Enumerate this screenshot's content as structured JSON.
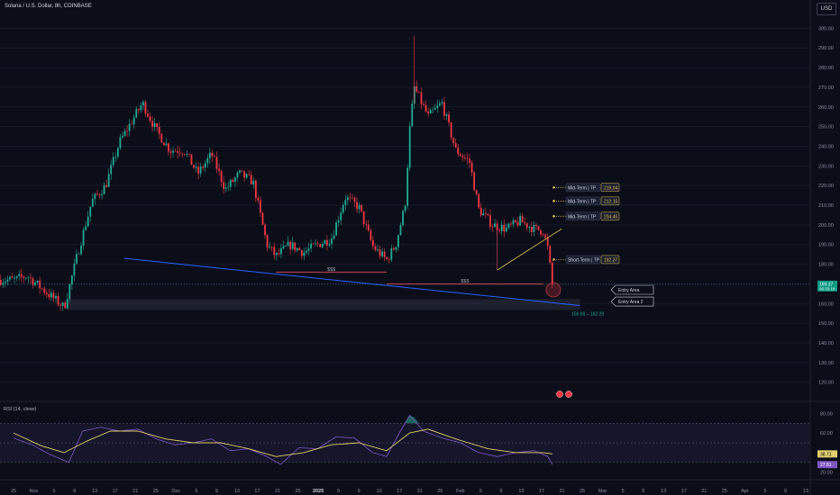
{
  "header": {
    "symbol_title": "Solana / U.S. Dollar, 8h, COINBASE",
    "currency": "USD"
  },
  "colors": {
    "background": "#0b0e19",
    "up": "#22ab94",
    "down": "#f23645",
    "trendline": "#2962ff",
    "wedge": "#e0b84a",
    "rsi": "#7e57c2",
    "rsi_ma": "#e0d070",
    "price_label": "#089981",
    "tp_label": "#e0b84a"
  },
  "chart_data": {
    "type": "candlestick",
    "y_axis": {
      "range": [
        113,
        302
      ],
      "ticks": [
        300,
        290,
        280,
        270,
        260,
        250,
        240,
        230,
        220,
        210,
        200,
        190,
        180,
        170,
        160,
        150,
        140,
        130,
        120
      ]
    },
    "x_axis": {
      "ticks": [
        {
          "label": "25",
          "bold": false
        },
        {
          "label": "Nov",
          "bold": false
        },
        {
          "label": "5",
          "bold": false
        },
        {
          "label": "9",
          "bold": false
        },
        {
          "label": "13",
          "bold": false
        },
        {
          "label": "17",
          "bold": false
        },
        {
          "label": "21",
          "bold": false
        },
        {
          "label": "25",
          "bold": false
        },
        {
          "label": "Dec",
          "bold": false
        },
        {
          "label": "5",
          "bold": false
        },
        {
          "label": "9",
          "bold": false
        },
        {
          "label": "13",
          "bold": false
        },
        {
          "label": "17",
          "bold": false
        },
        {
          "label": "21",
          "bold": false
        },
        {
          "label": "25",
          "bold": false
        },
        {
          "label": "2025",
          "bold": true
        },
        {
          "label": "5",
          "bold": false
        },
        {
          "label": "9",
          "bold": false
        },
        {
          "label": "13",
          "bold": false
        },
        {
          "label": "17",
          "bold": false
        },
        {
          "label": "21",
          "bold": false
        },
        {
          "label": "25",
          "bold": false
        },
        {
          "label": "Feb",
          "bold": false
        },
        {
          "label": "5",
          "bold": false
        },
        {
          "label": "9",
          "bold": false
        },
        {
          "label": "13",
          "bold": false
        },
        {
          "label": "17",
          "bold": false
        },
        {
          "label": "21",
          "bold": false
        },
        {
          "label": "25",
          "bold": false
        },
        {
          "label": "Mar",
          "bold": false
        },
        {
          "label": "5",
          "bold": false
        },
        {
          "label": "9",
          "bold": false
        },
        {
          "label": "13",
          "bold": false
        },
        {
          "label": "17",
          "bold": false
        },
        {
          "label": "21",
          "bold": false
        },
        {
          "label": "25",
          "bold": false
        },
        {
          "label": "Apr",
          "bold": false
        },
        {
          "label": "5",
          "bold": false
        },
        {
          "label": "9",
          "bold": false
        },
        {
          "label": "13",
          "bold": false
        }
      ]
    },
    "price_path": [
      {
        "date": "2024-10-24",
        "price": 172
      },
      {
        "date": "2024-10-27",
        "price": 174
      },
      {
        "date": "2024-10-31",
        "price": 166
      },
      {
        "date": "2024-11-04",
        "price": 158
      },
      {
        "date": "2024-11-07",
        "price": 186
      },
      {
        "date": "2024-11-10",
        "price": 212
      },
      {
        "date": "2024-11-13",
        "price": 220
      },
      {
        "date": "2024-11-16",
        "price": 242
      },
      {
        "date": "2024-11-19",
        "price": 254
      },
      {
        "date": "2024-11-21",
        "price": 262
      },
      {
        "date": "2024-11-24",
        "price": 248
      },
      {
        "date": "2024-11-27",
        "price": 238
      },
      {
        "date": "2024-11-30",
        "price": 238
      },
      {
        "date": "2024-12-03",
        "price": 226
      },
      {
        "date": "2024-12-06",
        "price": 236
      },
      {
        "date": "2024-12-09",
        "price": 218
      },
      {
        "date": "2024-12-12",
        "price": 226
      },
      {
        "date": "2024-12-15",
        "price": 222
      },
      {
        "date": "2024-12-18",
        "price": 190
      },
      {
        "date": "2024-12-20",
        "price": 184
      },
      {
        "date": "2024-12-23",
        "price": 190
      },
      {
        "date": "2024-12-26",
        "price": 186
      },
      {
        "date": "2024-12-29",
        "price": 190
      },
      {
        "date": "2025-01-01",
        "price": 193
      },
      {
        "date": "2025-01-04",
        "price": 214
      },
      {
        "date": "2025-01-07",
        "price": 209
      },
      {
        "date": "2025-01-10",
        "price": 189
      },
      {
        "date": "2025-01-13",
        "price": 182
      },
      {
        "date": "2025-01-15",
        "price": 190
      },
      {
        "date": "2025-01-17",
        "price": 210
      },
      {
        "date": "2025-01-18",
        "price": 248
      },
      {
        "date": "2025-01-19",
        "price": 270
      },
      {
        "date": "2025-01-22",
        "price": 255
      },
      {
        "date": "2025-01-25",
        "price": 262
      },
      {
        "date": "2025-01-28",
        "price": 238
      },
      {
        "date": "2025-01-31",
        "price": 232
      },
      {
        "date": "2025-02-02",
        "price": 208
      },
      {
        "date": "2025-02-05",
        "price": 200
      },
      {
        "date": "2025-02-08",
        "price": 198
      },
      {
        "date": "2025-02-11",
        "price": 202
      },
      {
        "date": "2025-02-14",
        "price": 198
      },
      {
        "date": "2025-02-16",
        "price": 197
      },
      {
        "date": "2025-02-17",
        "price": 188
      },
      {
        "date": "2025-02-18",
        "price": 169
      }
    ],
    "last_price": {
      "value": "169.37",
      "countdown": "06:33:18"
    },
    "trendline": {
      "from": {
        "date": "2024-11-17",
        "price": 183
      },
      "to": {
        "date": "2025-02-24",
        "price": 159
      }
    },
    "wedge_line": {
      "from": {
        "date": "2025-02-06",
        "price": 177
      },
      "to": {
        "date": "2025-02-20",
        "price": 198
      }
    },
    "dashed_level": 170,
    "liquidity_marks": [
      {
        "label": "$$$",
        "from": "2024-12-20",
        "to": "2025-01-13",
        "price": 176
      },
      {
        "label": "$$$",
        "from": "2025-01-13",
        "to": "2025-02-16",
        "price": 170
      }
    ],
    "entry_zone": {
      "from_price": 156.69,
      "to_price": 162.29,
      "label": "156.69 – 162.29"
    },
    "targets": [
      {
        "label": "Mid-Term | TP",
        "value": "219.04",
        "price": 219.04
      },
      {
        "label": "Mid-Term | TP",
        "value": "212.15",
        "price": 212.15
      },
      {
        "label": "Mid-Term | TP",
        "value": "204.40",
        "price": 204.4
      },
      {
        "label": "Short-Term | TP",
        "value": "182.37",
        "price": 182.37
      }
    ],
    "callouts": [
      {
        "label": "Entry Area",
        "price": 167
      },
      {
        "label": "Entry Area 2",
        "price": 161
      }
    ],
    "rsi": {
      "title": "RSI (14, close)",
      "range": [
        17,
        84
      ],
      "ticks": [
        80,
        60,
        40,
        20
      ],
      "bands": [
        70,
        50,
        30
      ],
      "last_rsi": "27.81",
      "last_ma": "38.71",
      "path": [
        {
          "date": "2024-10-24",
          "rsi": 55
        },
        {
          "date": "2024-10-28",
          "rsi": 48
        },
        {
          "date": "2024-11-01",
          "rsi": 38
        },
        {
          "date": "2024-11-05",
          "rsi": 30
        },
        {
          "date": "2024-11-08",
          "rsi": 62
        },
        {
          "date": "2024-11-12",
          "rsi": 66
        },
        {
          "date": "2024-11-16",
          "rsi": 62
        },
        {
          "date": "2024-11-20",
          "rsi": 64
        },
        {
          "date": "2024-11-24",
          "rsi": 54
        },
        {
          "date": "2024-11-28",
          "rsi": 48
        },
        {
          "date": "2024-12-02",
          "rsi": 50
        },
        {
          "date": "2024-12-06",
          "rsi": 54
        },
        {
          "date": "2024-12-10",
          "rsi": 42
        },
        {
          "date": "2024-12-14",
          "rsi": 44
        },
        {
          "date": "2024-12-18",
          "rsi": 36
        },
        {
          "date": "2024-12-21",
          "rsi": 28
        },
        {
          "date": "2024-12-25",
          "rsi": 45
        },
        {
          "date": "2024-12-29",
          "rsi": 44
        },
        {
          "date": "2025-01-02",
          "rsi": 56
        },
        {
          "date": "2025-01-06",
          "rsi": 55
        },
        {
          "date": "2025-01-10",
          "rsi": 40
        },
        {
          "date": "2025-01-13",
          "rsi": 36
        },
        {
          "date": "2025-01-16",
          "rsi": 62
        },
        {
          "date": "2025-01-18",
          "rsi": 78
        },
        {
          "date": "2025-01-21",
          "rsi": 62
        },
        {
          "date": "2025-01-25",
          "rsi": 55
        },
        {
          "date": "2025-01-29",
          "rsi": 50
        },
        {
          "date": "2025-02-02",
          "rsi": 40
        },
        {
          "date": "2025-02-06",
          "rsi": 36
        },
        {
          "date": "2025-02-10",
          "rsi": 40
        },
        {
          "date": "2025-02-14",
          "rsi": 42
        },
        {
          "date": "2025-02-17",
          "rsi": 36
        },
        {
          "date": "2025-02-18",
          "rsi": 27.81
        }
      ],
      "ma_path": [
        {
          "date": "2024-10-24",
          "rsi": 60
        },
        {
          "date": "2024-10-30",
          "rsi": 47
        },
        {
          "date": "2024-11-04",
          "rsi": 40
        },
        {
          "date": "2024-11-09",
          "rsi": 52
        },
        {
          "date": "2024-11-14",
          "rsi": 62
        },
        {
          "date": "2024-11-20",
          "rsi": 62
        },
        {
          "date": "2024-11-26",
          "rsi": 54
        },
        {
          "date": "2024-12-02",
          "rsi": 50
        },
        {
          "date": "2024-12-08",
          "rsi": 50
        },
        {
          "date": "2024-12-14",
          "rsi": 44
        },
        {
          "date": "2024-12-20",
          "rsi": 36
        },
        {
          "date": "2024-12-26",
          "rsi": 40
        },
        {
          "date": "2025-01-01",
          "rsi": 48
        },
        {
          "date": "2025-01-07",
          "rsi": 50
        },
        {
          "date": "2025-01-13",
          "rsi": 42
        },
        {
          "date": "2025-01-18",
          "rsi": 60
        },
        {
          "date": "2025-01-22",
          "rsi": 64
        },
        {
          "date": "2025-01-28",
          "rsi": 54
        },
        {
          "date": "2025-02-04",
          "rsi": 44
        },
        {
          "date": "2025-02-10",
          "rsi": 40
        },
        {
          "date": "2025-02-16",
          "rsi": 40
        },
        {
          "date": "2025-02-18",
          "rsi": 38.71
        }
      ]
    }
  }
}
